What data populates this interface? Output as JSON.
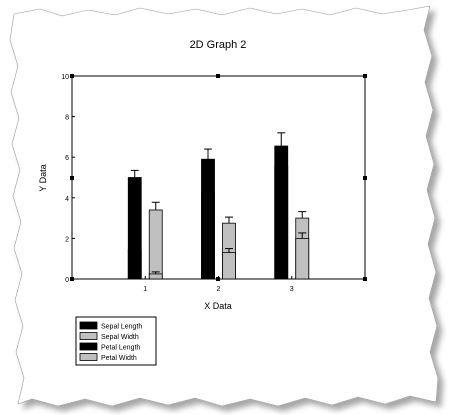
{
  "chart_data": {
    "type": "bar",
    "title": "2D Graph 2",
    "xlabel": "X Data",
    "ylabel": "Y Data",
    "categories": [
      "1",
      "2",
      "3"
    ],
    "ylim": [
      0,
      10
    ],
    "xlim": [
      0,
      4
    ],
    "yticks": [
      "0",
      "2",
      "4",
      "6",
      "8",
      "10"
    ],
    "grid": false,
    "legend_placement": "bottom-left",
    "stacked_pairs": true,
    "series": [
      {
        "name": "Sepal Length",
        "values": [
          5.0,
          5.9,
          6.55
        ],
        "errors": [
          0.35,
          0.5,
          0.65
        ],
        "color": "#000000",
        "group": "left"
      },
      {
        "name": "Sepal Width",
        "values": [
          3.4,
          2.75,
          3.0
        ],
        "errors": [
          0.38,
          0.3,
          0.32
        ],
        "color": "#c0c0c0",
        "group": "right"
      },
      {
        "name": "Petal Length",
        "values": [
          1.45,
          4.25,
          5.55
        ],
        "errors": [
          0.17,
          0.47,
          0.55
        ],
        "color": "#000000",
        "group": "left"
      },
      {
        "name": "Petal Width",
        "values": [
          0.25,
          1.3,
          2.0
        ],
        "errors": [
          0.1,
          0.2,
          0.27
        ],
        "color": "#c0c0c0",
        "group": "right"
      }
    ]
  }
}
